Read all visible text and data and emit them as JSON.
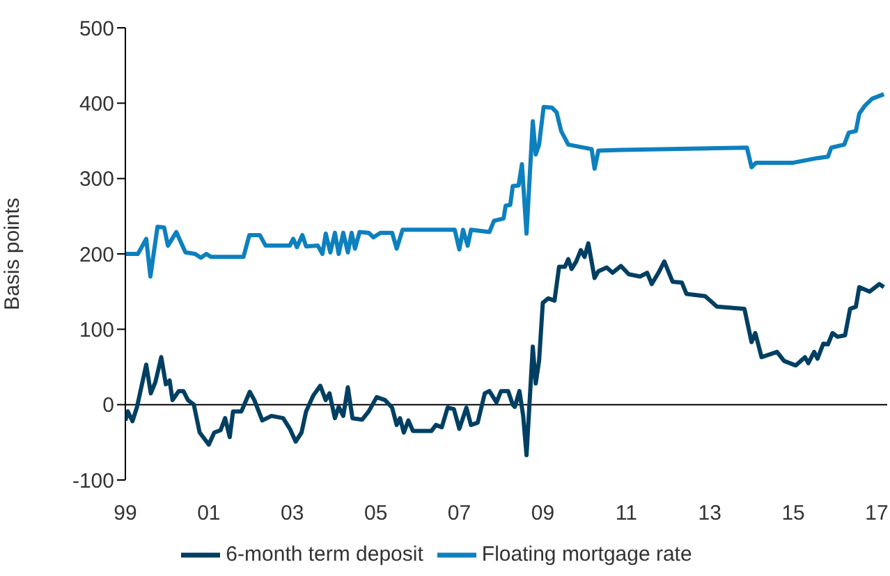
{
  "chart_data": {
    "type": "line",
    "ylabel": "Basis points",
    "xlim": [
      1999,
      2017.25
    ],
    "xticks": [
      {
        "value": 1999,
        "label": "99"
      },
      {
        "value": 2001,
        "label": "01"
      },
      {
        "value": 2003,
        "label": "03"
      },
      {
        "value": 2005,
        "label": "05"
      },
      {
        "value": 2007,
        "label": "07"
      },
      {
        "value": 2009,
        "label": "09"
      },
      {
        "value": 2011,
        "label": "11"
      },
      {
        "value": 2013,
        "label": "13"
      },
      {
        "value": 2015,
        "label": "15"
      },
      {
        "value": 2017,
        "label": "17"
      }
    ],
    "ylim": [
      -100,
      500
    ],
    "yticks": [
      -100,
      0,
      100,
      200,
      300,
      400,
      500
    ],
    "grid": false,
    "ref_lines": [
      {
        "axis": "y",
        "value": 0,
        "color": "#000000"
      }
    ],
    "legend": "bottom",
    "marker": "none",
    "line_style": "solid",
    "series": [
      {
        "name": "6-month term deposit",
        "color": "#003f62",
        "x": [
          1999,
          1999.06,
          1999.17,
          1999.28,
          1999.5,
          1999.61,
          1999.72,
          1999.86,
          1999.97,
          2000.06,
          2000.13,
          2000.28,
          2000.39,
          2000.5,
          2000.64,
          2000.78,
          2001,
          2001.13,
          2001.28,
          2001.39,
          2001.5,
          2001.58,
          2001.78,
          2001.98,
          2002.09,
          2002.28,
          2002.5,
          2002.78,
          2002.94,
          2003.08,
          2003.22,
          2003.33,
          2003.5,
          2003.67,
          2003.8,
          2003.89,
          2004.02,
          2004.11,
          2004.22,
          2004.33,
          2004.44,
          2004.67,
          2004.83,
          2005.02,
          2005.22,
          2005.39,
          2005.5,
          2005.58,
          2005.67,
          2005.78,
          2005.89,
          2006.33,
          2006.44,
          2006.58,
          2006.72,
          2006.87,
          2007,
          2007.17,
          2007.28,
          2007.44,
          2007.61,
          2007.72,
          2007.89,
          2008,
          2008.17,
          2008.28,
          2008.33,
          2008.44,
          2008.53,
          2008.61,
          2008.76,
          2008.83,
          2008.91,
          2009,
          2009.13,
          2009.28,
          2009.39,
          2009.53,
          2009.61,
          2009.69,
          2009.8,
          2009.91,
          2010,
          2010.09,
          2010.24,
          2010.33,
          2010.53,
          2010.67,
          2010.87,
          2011.06,
          2011.33,
          2011.5,
          2011.61,
          2011.78,
          2011.91,
          2012.11,
          2012.33,
          2012.44,
          2012.89,
          2013.17,
          2013.83,
          2014,
          2014.09,
          2014.24,
          2014.61,
          2014.78,
          2015.06,
          2015.28,
          2015.36,
          2015.5,
          2015.58,
          2015.72,
          2015.83,
          2015.94,
          2016.06,
          2016.24,
          2016.36,
          2016.5,
          2016.58,
          2016.83,
          2017.06,
          2017.17
        ],
        "values": [
          -21,
          -9,
          -22,
          -3,
          53,
          15,
          30,
          63,
          27,
          32,
          6,
          18,
          18,
          6,
          0,
          -37,
          -53,
          -37,
          -34,
          -18,
          -43,
          -9,
          -9,
          17,
          6,
          -21,
          -15,
          -18,
          -32,
          -49,
          -37,
          -9,
          12,
          25,
          6,
          15,
          -18,
          -3,
          -15,
          23,
          -18,
          -20,
          -9,
          10,
          6,
          -4,
          -27,
          -18,
          -37,
          -21,
          -35,
          -35,
          -27,
          -30,
          -4,
          -6,
          -32,
          -4,
          -27,
          -24,
          15,
          18,
          3,
          18,
          18,
          0,
          -3,
          18,
          -15,
          -67,
          77,
          28,
          58,
          135,
          141,
          138,
          183,
          183,
          193,
          180,
          190,
          205,
          196,
          214,
          168,
          177,
          182,
          175,
          184,
          173,
          170,
          175,
          160,
          176,
          190,
          163,
          162,
          147,
          144,
          130,
          127,
          83,
          95,
          63,
          70,
          58,
          52,
          63,
          55,
          70,
          61,
          81,
          80,
          95,
          90,
          92,
          127,
          130,
          156,
          150,
          160,
          156
        ]
      },
      {
        "name": "Floating mortgage rate",
        "color": "#0d80bf",
        "x": [
          1999,
          1999.3,
          1999.5,
          1999.6,
          1999.77,
          1999.93,
          2000.02,
          2000.22,
          2000.44,
          2000.67,
          2000.81,
          2000.94,
          2001.05,
          2001.83,
          2001.97,
          2002.22,
          2002.36,
          2002.94,
          2003.02,
          2003.11,
          2003.24,
          2003.33,
          2003.61,
          2003.72,
          2003.8,
          2003.91,
          2004.02,
          2004.11,
          2004.22,
          2004.33,
          2004.42,
          2004.5,
          2004.61,
          2004.83,
          2004.94,
          2005.11,
          2005.39,
          2005.5,
          2005.64,
          2006.89,
          2007,
          2007.09,
          2007.2,
          2007.28,
          2007.72,
          2007.83,
          2008.06,
          2008.11,
          2008.22,
          2008.28,
          2008.42,
          2008.5,
          2008.61,
          2008.76,
          2008.83,
          2008.91,
          2009.02,
          2009.22,
          2009.33,
          2009.44,
          2009.61,
          2010.17,
          2010.24,
          2010.33,
          2010.89,
          2013.89,
          2014,
          2014.11,
          2015,
          2015.56,
          2015.83,
          2015.91,
          2016.22,
          2016.33,
          2016.5,
          2016.58,
          2016.72,
          2016.89,
          2017.17
        ],
        "values": [
          200,
          200,
          220,
          170,
          236,
          235,
          211,
          229,
          202,
          200,
          195,
          200,
          196,
          196,
          225,
          225,
          211,
          211,
          220,
          209,
          225,
          210,
          211,
          200,
          227,
          202,
          228,
          200,
          228,
          202,
          228,
          207,
          229,
          228,
          222,
          228,
          228,
          207,
          232,
          232,
          206,
          232,
          211,
          232,
          229,
          244,
          247,
          264,
          265,
          290,
          291,
          319,
          227,
          376,
          332,
          345,
          395,
          394,
          388,
          363,
          345,
          339,
          313,
          337,
          338,
          341,
          315,
          321,
          321,
          327,
          329,
          341,
          345,
          361,
          363,
          386,
          397,
          406,
          412
        ]
      }
    ]
  }
}
